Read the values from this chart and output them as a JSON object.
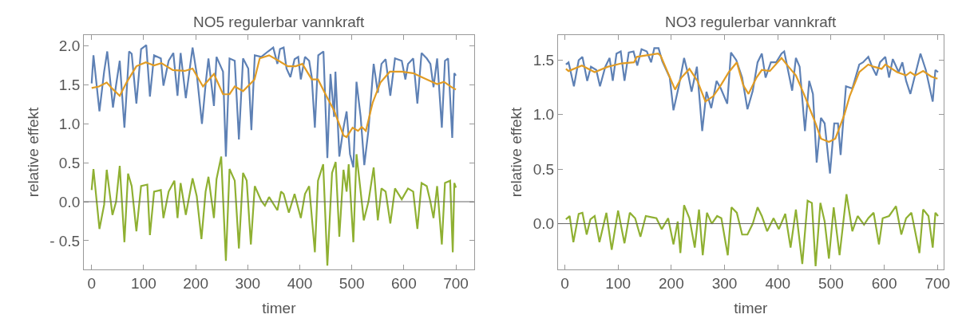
{
  "chart_data": [
    {
      "type": "line",
      "title": "NO5 regulerbar vannkraft",
      "xlabel": "timer",
      "ylabel": "relative effekt",
      "xlim": [
        -15,
        735
      ],
      "xticks": [
        0,
        100,
        200,
        300,
        400,
        500,
        600,
        700
      ],
      "ylim": [
        -0.87,
        2.14
      ],
      "yticks": [
        {
          "value": 2,
          "label": "2.0"
        },
        {
          "value": 1.5,
          "label": "1.5"
        },
        {
          "value": 1,
          "label": "1.0"
        },
        {
          "value": 0.5,
          "label": "0.5"
        },
        {
          "value": 0,
          "label": "0.0"
        },
        {
          "value": -0.5,
          "label": "- 0.5"
        }
      ],
      "ref_lines": [
        {
          "axis": "y",
          "value": 0,
          "color": "#666666"
        }
      ],
      "series": [
        {
          "color": "#5e81b5",
          "x": [
            0,
            3.5,
            15,
            24,
            30,
            41,
            47,
            54,
            63,
            72,
            77,
            86,
            95,
            105,
            112,
            120,
            133,
            138,
            148,
            157,
            165,
            171,
            181,
            194,
            202,
            212,
            219.5,
            224.5,
            235,
            240,
            252.5,
            258,
            265,
            275,
            283,
            291,
            301,
            307,
            313.5,
            326,
            339,
            349,
            357,
            362,
            369,
            374.5,
            382,
            390,
            397,
            402,
            410,
            418,
            423,
            429,
            435.5,
            445.5,
            453,
            459,
            466,
            468.5,
            476,
            484,
            490,
            496.5,
            503,
            509,
            517,
            524,
            532,
            542,
            550,
            557,
            565,
            574,
            583,
            596,
            603,
            608,
            618,
            626,
            634,
            644,
            651,
            657,
            664,
            673,
            679,
            685,
            693,
            697,
            700
          ],
          "values": [
            1.52,
            1.88,
            1.16,
            1.67,
            1.93,
            1.21,
            1.5,
            1.81,
            0.95,
            1.93,
            1.9,
            1.26,
            1.96,
            2.01,
            1.35,
            1.88,
            1.84,
            1.49,
            1.81,
            1.91,
            1.36,
            1.91,
            1.33,
            1.98,
            1.64,
            1.0,
            1.54,
            1.84,
            1.23,
            1.86,
            1.67,
            0.58,
            1.84,
            1.81,
            0.8,
            1.84,
            1.71,
            0.92,
            1.88,
            1.86,
            1.93,
            1.98,
            1.77,
            1.96,
            1.98,
            1.71,
            1.6,
            1.83,
            1.86,
            1.57,
            1.86,
            1.81,
            1.6,
            0.95,
            1.88,
            1.93,
            0.56,
            1.64,
            1.09,
            1.67,
            0.58,
            0.95,
            1.16,
            0.61,
            0.44,
            1.54,
            1.09,
            0.47,
            0.92,
            1.77,
            1.4,
            1.77,
            1.83,
            1.36,
            1.84,
            1.81,
            1.57,
            1.77,
            1.84,
            1.26,
            1.91,
            1.84,
            1.77,
            1.47,
            1.84,
            0.95,
            1.81,
            1.84,
            0.82,
            1.65,
            1.62
          ]
        },
        {
          "color": "#e19c24",
          "x": [
            0,
            14,
            29,
            40,
            54,
            67,
            86,
            104,
            120,
            134,
            156,
            179,
            194,
            214,
            235,
            252.5,
            265,
            275,
            291,
            313,
            323,
            341,
            362,
            377,
            392,
            405,
            423,
            435,
            451,
            466,
            484,
            490,
            501.5,
            512,
            519,
            527,
            540,
            555,
            573,
            596,
            618,
            641,
            664,
            677,
            692,
            700
          ],
          "values": [
            1.46,
            1.48,
            1.53,
            1.45,
            1.36,
            1.53,
            1.74,
            1.79,
            1.75,
            1.78,
            1.69,
            1.68,
            1.71,
            1.48,
            1.64,
            1.38,
            1.38,
            1.48,
            1.42,
            1.57,
            1.84,
            1.88,
            1.8,
            1.74,
            1.74,
            1.77,
            1.57,
            1.57,
            1.36,
            1.17,
            0.85,
            0.83,
            0.95,
            0.91,
            0.96,
            0.91,
            1.27,
            1.53,
            1.67,
            1.67,
            1.65,
            1.58,
            1.51,
            1.54,
            1.47,
            1.44
          ]
        },
        {
          "color": "#8fb032",
          "x": [
            0,
            3.5,
            15,
            24,
            29,
            40,
            47,
            54,
            63,
            70,
            77,
            86,
            95,
            107,
            112,
            120,
            133,
            138,
            148,
            159,
            165,
            171,
            181,
            194,
            202,
            211,
            219,
            224.5,
            235,
            240,
            249,
            258,
            265,
            275,
            283,
            291,
            298,
            306,
            313.5,
            326,
            333,
            341,
            357,
            364,
            369,
            379,
            390,
            402,
            410,
            418,
            429,
            435,
            445,
            453,
            462,
            469,
            476,
            484,
            490,
            494,
            503,
            509,
            517,
            523,
            532,
            542,
            550,
            557,
            565,
            574,
            583,
            596,
            608,
            618,
            626,
            634,
            644,
            651,
            657,
            664,
            673,
            679,
            689,
            694,
            697,
            700
          ],
          "values": [
            0.15,
            0.42,
            -0.35,
            -0.04,
            0.41,
            -0.17,
            0.0,
            0.46,
            -0.52,
            0.36,
            0.2,
            -0.38,
            0.2,
            0.22,
            -0.43,
            0.13,
            0.15,
            -0.21,
            0.13,
            0.27,
            -0.21,
            0.24,
            -0.17,
            0.3,
            0.07,
            -0.48,
            0.13,
            0.32,
            -0.21,
            0.29,
            0.58,
            -0.76,
            0.42,
            0.27,
            -0.6,
            0.37,
            0.27,
            -0.55,
            0.2,
            0.01,
            -0.05,
            0.06,
            -0.11,
            0.13,
            0.1,
            -0.14,
            0.1,
            -0.21,
            0.1,
            0.2,
            -0.65,
            0.27,
            0.48,
            -0.82,
            0.37,
            0.51,
            -0.45,
            0.41,
            0.13,
            0.48,
            -0.52,
            0.61,
            0.13,
            -0.24,
            0.0,
            0.44,
            -0.24,
            0.17,
            0.13,
            -0.28,
            0.17,
            0.03,
            0.17,
            0.13,
            -0.35,
            0.24,
            0.2,
            0.0,
            -0.21,
            0.2,
            -0.55,
            0.24,
            0.27,
            -0.65,
            0.24,
            0.18
          ]
        }
      ]
    },
    {
      "type": "line",
      "title": "NO3 regulerbar vannkraft",
      "xlabel": "timer",
      "ylabel": "relative effekt",
      "xlim": [
        -13,
        711
      ],
      "xticks": [
        0,
        100,
        200,
        300,
        400,
        500,
        600,
        700
      ],
      "ylim": [
        -0.42,
        1.73
      ],
      "yticks": [
        {
          "value": 1.5,
          "label": "1.5"
        },
        {
          "value": 1,
          "label": "1.0"
        },
        {
          "value": 0.5,
          "label": "0.5"
        },
        {
          "value": 0,
          "label": "0.0"
        }
      ],
      "ref_lines": [
        {
          "axis": "y",
          "value": 0,
          "color": "#666666"
        }
      ],
      "series": [
        {
          "color": "#5e81b5",
          "x": [
            2,
            7,
            17,
            26,
            33,
            42,
            49,
            59,
            66,
            76,
            84,
            90,
            97,
            105,
            112,
            120,
            129,
            136,
            144,
            154,
            162,
            168,
            176,
            183,
            197,
            204,
            214,
            224,
            232,
            238,
            248,
            258,
            266,
            275,
            285,
            293,
            305,
            312,
            322,
            333,
            343,
            353,
            362,
            370,
            377,
            387,
            397,
            407,
            412,
            427,
            434,
            441,
            451,
            459,
            466,
            473,
            481,
            488,
            498,
            506,
            513,
            518,
            528,
            540,
            553,
            560,
            570,
            577,
            585,
            592,
            602,
            609,
            616,
            627,
            634,
            641,
            649,
            668,
            678,
            691,
            696,
            701
          ],
          "values": [
            1.46,
            1.48,
            1.26,
            1.5,
            1.53,
            1.31,
            1.44,
            1.41,
            1.26,
            1.44,
            1.52,
            1.31,
            1.56,
            1.58,
            1.31,
            1.57,
            1.58,
            1.45,
            1.6,
            1.58,
            1.48,
            1.61,
            1.61,
            1.49,
            1.34,
            1.04,
            1.26,
            1.52,
            1.36,
            1.21,
            1.44,
            0.85,
            1.21,
            1.06,
            1.31,
            1.24,
            1.1,
            1.57,
            1.5,
            1.34,
            1.05,
            1.22,
            1.48,
            1.56,
            1.34,
            1.48,
            1.48,
            1.56,
            1.58,
            1.22,
            1.52,
            1.44,
            0.85,
            1.31,
            1.19,
            0.56,
            0.97,
            0.92,
            0.46,
            0.92,
            0.92,
            0.63,
            1.26,
            1.24,
            1.46,
            1.48,
            1.53,
            1.44,
            1.36,
            1.48,
            1.53,
            1.34,
            1.51,
            1.39,
            1.48,
            1.31,
            1.19,
            1.56,
            1.41,
            1.12,
            1.41,
            1.39
          ]
        },
        {
          "color": "#e19c24",
          "x": [
            2,
            7,
            32,
            56,
            81,
            106,
            130,
            135,
            175,
            180,
            207,
            219,
            234,
            249,
            264,
            279,
            293,
            308,
            323,
            335,
            345,
            360,
            370,
            385,
            407,
            420,
            434,
            449,
            471,
            481,
            496,
            508,
            525,
            535,
            553,
            570,
            580,
            595,
            602,
            624,
            641,
            649,
            658,
            673,
            688,
            700
          ],
          "values": [
            1.42,
            1.4,
            1.45,
            1.39,
            1.44,
            1.47,
            1.48,
            1.53,
            1.56,
            1.54,
            1.23,
            1.34,
            1.42,
            1.31,
            1.12,
            1.17,
            1.27,
            1.39,
            1.48,
            1.27,
            1.19,
            1.34,
            1.41,
            1.4,
            1.52,
            1.44,
            1.36,
            1.19,
            0.92,
            0.78,
            0.75,
            0.78,
            1.0,
            1.17,
            1.39,
            1.46,
            1.44,
            1.42,
            1.46,
            1.39,
            1.36,
            1.39,
            1.36,
            1.4,
            1.35,
            1.33
          ]
        },
        {
          "color": "#8fb032",
          "x": [
            2,
            9,
            16,
            26,
            33,
            41,
            48,
            56,
            65,
            78,
            88,
            100,
            112,
            122,
            132,
            142,
            152,
            162,
            172,
            182,
            194,
            204,
            212,
            217,
            224,
            234,
            244,
            252,
            259,
            267,
            276,
            286,
            294,
            306,
            313,
            323,
            333,
            343,
            353,
            362,
            370,
            380,
            392,
            402,
            414,
            424,
            434,
            446,
            456,
            464,
            471,
            480,
            488,
            496,
            505,
            516,
            529,
            540,
            550,
            562,
            570,
            580,
            590,
            597,
            609,
            622,
            632,
            641,
            651,
            666,
            673,
            683,
            691,
            696,
            701
          ],
          "values": [
            0.04,
            0.07,
            -0.17,
            0.09,
            0.1,
            -0.1,
            0.04,
            0.07,
            -0.17,
            0.1,
            -0.24,
            0.12,
            -0.18,
            0.1,
            0.05,
            -0.12,
            0.07,
            0.06,
            0.05,
            -0.05,
            0.05,
            -0.19,
            0.02,
            -0.27,
            0.17,
            0.05,
            -0.22,
            0.13,
            -0.29,
            0.1,
            0.0,
            0.07,
            0.05,
            -0.29,
            0.15,
            0.1,
            -0.1,
            -0.1,
            0.0,
            0.15,
            0.07,
            -0.07,
            0.05,
            -0.05,
            0.09,
            -0.22,
            0.13,
            -0.37,
            0.21,
            0.19,
            -0.39,
            0.19,
            0.02,
            -0.32,
            0.15,
            -0.29,
            0.27,
            -0.07,
            0.07,
            -0.01,
            0.05,
            0.1,
            -0.19,
            0.05,
            0.07,
            0.16,
            -0.1,
            0.05,
            0.1,
            -0.27,
            0.13,
            0.07,
            -0.22,
            0.1,
            0.07
          ]
        }
      ]
    }
  ]
}
